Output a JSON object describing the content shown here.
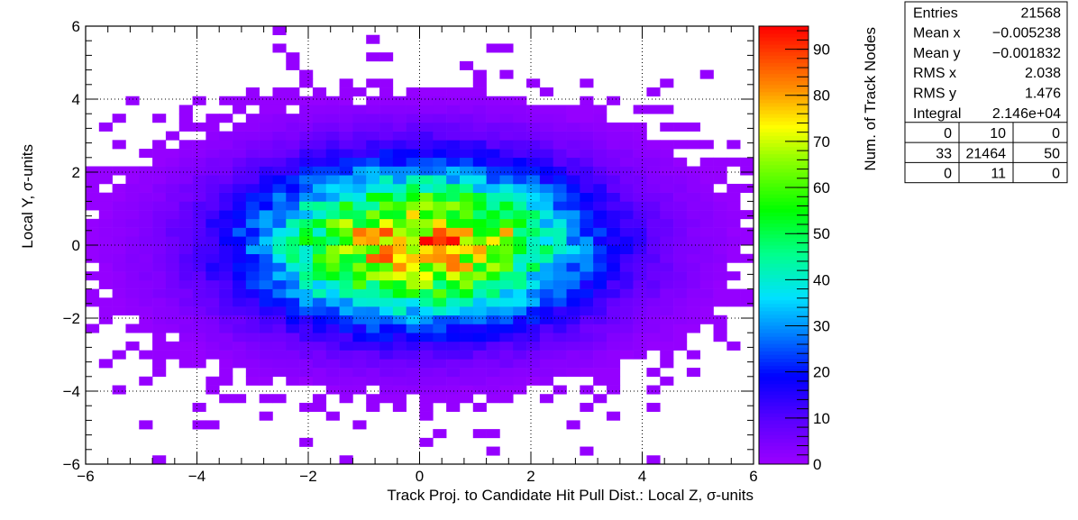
{
  "chart_data": {
    "type": "heatmap",
    "title": "",
    "xlabel": "Track Proj. to Candidate Hit Pull Dist.: Local Z, σ-units",
    "ylabel": "Local Y, σ-units",
    "zlabel": "Num. of Track Nodes",
    "xlim": [
      -6,
      6
    ],
    "ylim": [
      -6,
      6
    ],
    "zlim": [
      0,
      95
    ],
    "x_ticks": [
      "−6",
      "−4",
      "−2",
      "0",
      "2",
      "4",
      "6"
    ],
    "y_ticks": [
      "−6",
      "−4",
      "−2",
      "0",
      "2",
      "4",
      "6"
    ],
    "z_ticks": [
      "0",
      "10",
      "20",
      "30",
      "40",
      "50",
      "60",
      "70",
      "80",
      "90"
    ],
    "grid": true,
    "bins": {
      "nx": 50,
      "ny": 50
    },
    "distribution": {
      "peak_counts": 95,
      "center_x": 0.0,
      "center_y": 0.0,
      "sigma_x": 2.038,
      "sigma_y": 1.476,
      "note_values": "smooth 2D Gaussian with max ~95 entries near (0.1, 0)"
    },
    "hot_bins": [
      {
        "x": 0.12,
        "y": 0.0,
        "value": 95
      },
      {
        "x": 0.6,
        "y": 0.0,
        "value": 94
      },
      {
        "x": -0.6,
        "y": -0.3,
        "value": 88
      },
      {
        "x": -0.84,
        "y": -0.3,
        "value": 86
      },
      {
        "x": -1.2,
        "y": 0.25,
        "value": 84
      },
      {
        "x": 1.56,
        "y": 0.25,
        "value": 80
      },
      {
        "x": 0.84,
        "y": -0.6,
        "value": 80
      }
    ]
  },
  "stats_box": {
    "rows": [
      {
        "label": "Entries",
        "value": "21568"
      },
      {
        "label": "Mean x",
        "value": "−0.005238"
      },
      {
        "label": "Mean y",
        "value": "−0.001832"
      },
      {
        "label": "RMS x",
        "value": "2.038"
      },
      {
        "label": "RMS y",
        "value": "1.476"
      },
      {
        "label": "Integral",
        "value": "2.146e+04"
      }
    ],
    "overflow_grid": [
      [
        "0",
        "10",
        "0"
      ],
      [
        "33",
        "21464",
        "50"
      ],
      [
        "0",
        "11",
        "0"
      ]
    ]
  }
}
